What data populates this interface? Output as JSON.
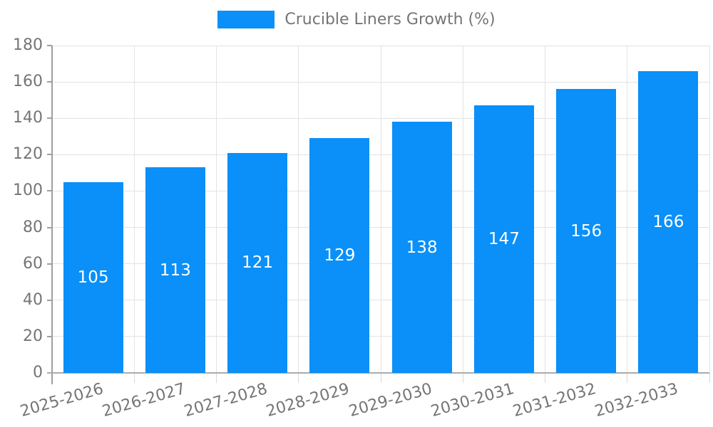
{
  "chart_data": {
    "type": "bar",
    "title": "",
    "legend": "Crucible Liners Growth (%)",
    "legend_position": "top",
    "categories": [
      "2025-2026",
      "2026-2027",
      "2027-2028",
      "2028-2029",
      "2029-2030",
      "2030-2031",
      "2031-2032",
      "2032-2033"
    ],
    "values": [
      105,
      113,
      121,
      129,
      138,
      147,
      156,
      166
    ],
    "xlabel": "",
    "ylabel": "",
    "ylim": [
      0,
      180
    ],
    "ytick_step": 20,
    "yticks": [
      0,
      20,
      40,
      60,
      80,
      100,
      120,
      140,
      160,
      180
    ],
    "grid": true,
    "value_labels": "inside-center",
    "colors": {
      "bar": "#0a90f8",
      "axis": "#9e9e9e",
      "grid": "#e3e3e3",
      "tick_text": "#757575",
      "value_label_text": "#ffffff",
      "legend_text": "#757575"
    }
  }
}
